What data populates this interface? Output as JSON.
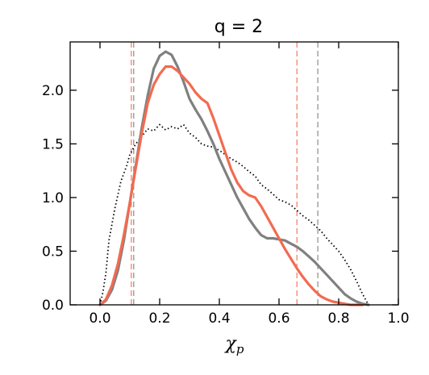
{
  "chart_data": {
    "type": "line",
    "title": "q = 2",
    "xlabel": "χ",
    "xlabel_subscript": "p",
    "ylabel": "",
    "xlim": [
      -0.1,
      1.0
    ],
    "ylim": [
      0.0,
      2.45
    ],
    "xticks": [
      "0.0",
      "0.2",
      "0.4",
      "0.6",
      "0.8",
      "1.0"
    ],
    "yticks": [
      "0.0",
      "0.5",
      "1.0",
      "1.5",
      "2.0"
    ],
    "grid": false,
    "legend": "none",
    "series": [
      {
        "style": "dotted",
        "color": "#000000",
        "x": [
          0.0,
          0.01,
          0.02,
          0.03,
          0.05,
          0.07,
          0.09,
          0.1,
          0.12,
          0.14,
          0.16,
          0.18,
          0.2,
          0.22,
          0.24,
          0.26,
          0.28,
          0.3,
          0.32,
          0.34,
          0.36,
          0.38,
          0.4,
          0.42,
          0.44,
          0.46,
          0.48,
          0.5,
          0.52,
          0.54,
          0.56,
          0.58,
          0.6,
          0.62,
          0.64,
          0.66,
          0.68,
          0.7,
          0.72,
          0.74,
          0.76,
          0.78,
          0.8,
          0.82,
          0.84,
          0.86,
          0.88,
          0.9
        ],
        "y": [
          0.0,
          0.12,
          0.3,
          0.6,
          0.9,
          1.15,
          1.3,
          1.4,
          1.5,
          1.57,
          1.64,
          1.62,
          1.68,
          1.63,
          1.66,
          1.64,
          1.68,
          1.6,
          1.56,
          1.5,
          1.48,
          1.47,
          1.44,
          1.4,
          1.36,
          1.33,
          1.29,
          1.24,
          1.2,
          1.12,
          1.08,
          1.03,
          0.98,
          0.96,
          0.93,
          0.88,
          0.83,
          0.79,
          0.74,
          0.69,
          0.62,
          0.56,
          0.5,
          0.42,
          0.33,
          0.22,
          0.1,
          0.0
        ]
      },
      {
        "style": "solid",
        "color": "#808080",
        "x": [
          0.0,
          0.02,
          0.04,
          0.06,
          0.08,
          0.1,
          0.12,
          0.14,
          0.16,
          0.18,
          0.2,
          0.22,
          0.24,
          0.26,
          0.28,
          0.3,
          0.32,
          0.34,
          0.36,
          0.38,
          0.4,
          0.42,
          0.44,
          0.46,
          0.48,
          0.5,
          0.52,
          0.54,
          0.56,
          0.58,
          0.6,
          0.62,
          0.64,
          0.66,
          0.68,
          0.7,
          0.72,
          0.74,
          0.76,
          0.78,
          0.8,
          0.82,
          0.84,
          0.86,
          0.88,
          0.9
        ],
        "y": [
          0.0,
          0.04,
          0.14,
          0.32,
          0.6,
          0.95,
          1.3,
          1.65,
          1.95,
          2.2,
          2.32,
          2.36,
          2.33,
          2.22,
          2.08,
          1.92,
          1.82,
          1.73,
          1.62,
          1.5,
          1.36,
          1.24,
          1.12,
          1.0,
          0.9,
          0.8,
          0.72,
          0.65,
          0.62,
          0.62,
          0.61,
          0.6,
          0.57,
          0.54,
          0.5,
          0.45,
          0.4,
          0.34,
          0.28,
          0.22,
          0.16,
          0.1,
          0.06,
          0.03,
          0.01,
          0.0
        ]
      },
      {
        "style": "solid",
        "color": "#f26b50",
        "x": [
          0.0,
          0.02,
          0.04,
          0.06,
          0.08,
          0.1,
          0.12,
          0.14,
          0.16,
          0.18,
          0.2,
          0.22,
          0.24,
          0.26,
          0.28,
          0.3,
          0.32,
          0.34,
          0.36,
          0.38,
          0.4,
          0.42,
          0.44,
          0.46,
          0.48,
          0.5,
          0.52,
          0.54,
          0.56,
          0.58,
          0.6,
          0.62,
          0.64,
          0.66,
          0.68,
          0.7,
          0.72,
          0.74,
          0.76,
          0.78,
          0.8,
          0.82,
          0.84,
          0.86,
          0.88
        ],
        "y": [
          0.0,
          0.05,
          0.18,
          0.38,
          0.65,
          0.95,
          1.28,
          1.6,
          1.88,
          2.05,
          2.15,
          2.22,
          2.22,
          2.18,
          2.12,
          2.06,
          1.98,
          1.92,
          1.88,
          1.74,
          1.58,
          1.42,
          1.26,
          1.14,
          1.06,
          1.02,
          1.0,
          0.92,
          0.82,
          0.72,
          0.62,
          0.52,
          0.43,
          0.34,
          0.26,
          0.19,
          0.13,
          0.08,
          0.05,
          0.03,
          0.02,
          0.01,
          0.0,
          0.0,
          0.0
        ]
      }
    ],
    "vlines": [
      {
        "x": 0.105,
        "color": "#f26b50",
        "style": "dashed"
      },
      {
        "x": 0.113,
        "color": "#808080",
        "style": "dashed"
      },
      {
        "x": 0.66,
        "color": "#f26b50",
        "style": "dashed"
      },
      {
        "x": 0.73,
        "color": "#808080",
        "style": "dashed"
      }
    ]
  }
}
